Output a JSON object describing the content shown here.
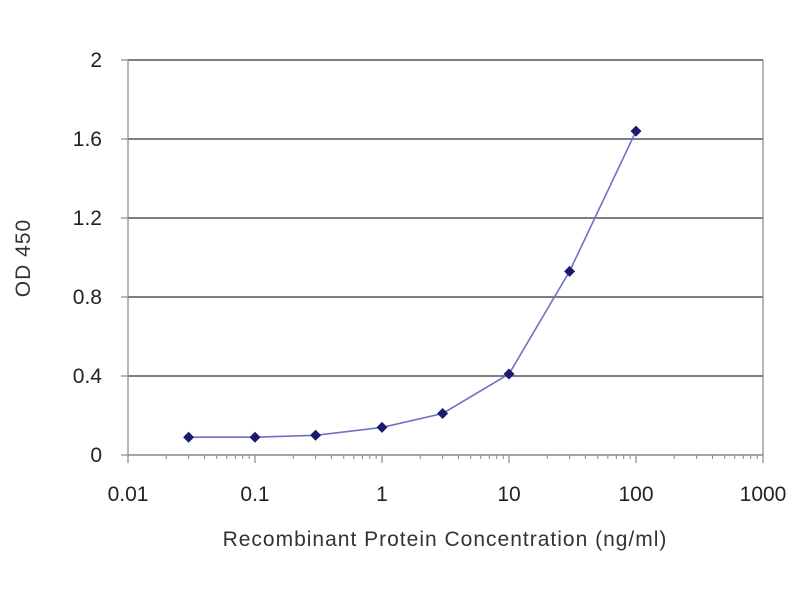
{
  "chart_data": {
    "type": "line",
    "title": "",
    "xlabel": "Recombinant Protein Concentration (ng/ml)",
    "ylabel": "OD 450",
    "xscale": "log",
    "xlim": [
      0.01,
      1000
    ],
    "ylim": [
      0,
      2
    ],
    "x_ticks": [
      0.01,
      0.1,
      1,
      10,
      100,
      1000
    ],
    "x_tick_labels": [
      "0.01",
      "0.1",
      "1",
      "10",
      "100",
      "1000"
    ],
    "y_ticks": [
      0,
      0.4,
      0.8,
      1.2,
      1.6,
      2
    ],
    "y_tick_labels": [
      "0",
      "0.4",
      "0.8",
      "1.2",
      "1.6",
      "2"
    ],
    "grid": "horizontal",
    "legend": "none",
    "series": [
      {
        "x": [
          0.03,
          0.1,
          0.3,
          1,
          3,
          10,
          30,
          100
        ],
        "y": [
          0.09,
          0.09,
          0.1,
          0.14,
          0.21,
          0.41,
          0.93,
          1.64
        ],
        "line_color": "#7070c8",
        "marker_color": "#1a1a6e"
      }
    ],
    "colors": {
      "gridline": "#555555",
      "axis": "#888888"
    }
  }
}
